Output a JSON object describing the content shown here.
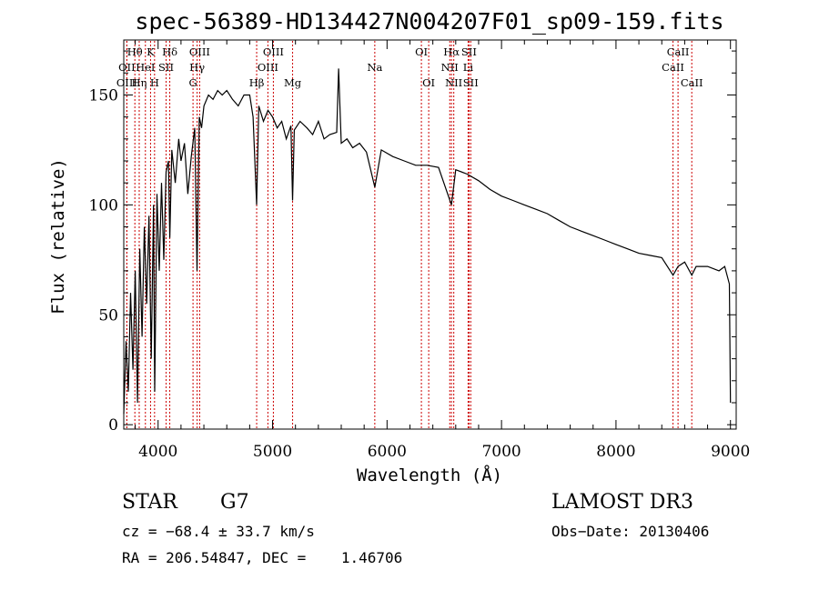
{
  "chart_data": {
    "type": "line",
    "title": "spec-56389-HD134427N004207F01_sp09-159.fits",
    "xlabel": "Wavelength (Å)",
    "ylabel": "Flux (relative)",
    "xlim": [
      3700,
      9050
    ],
    "ylim": [
      -2,
      175
    ],
    "xticks": [
      4000,
      5000,
      6000,
      7000,
      8000,
      9000
    ],
    "yticks": [
      0,
      50,
      100,
      150
    ],
    "series": [
      {
        "name": "flux",
        "x": [
          3700,
          3720,
          3740,
          3760,
          3780,
          3800,
          3820,
          3840,
          3860,
          3880,
          3900,
          3920,
          3940,
          3960,
          3970,
          3990,
          4010,
          4030,
          4050,
          4070,
          4090,
          4102,
          4120,
          4150,
          4180,
          4200,
          4230,
          4260,
          4290,
          4320,
          4340,
          4360,
          4380,
          4400,
          4440,
          4480,
          4520,
          4560,
          4600,
          4650,
          4700,
          4750,
          4800,
          4830,
          4861,
          4880,
          4920,
          4960,
          5000,
          5040,
          5080,
          5120,
          5160,
          5175,
          5190,
          5240,
          5300,
          5350,
          5400,
          5450,
          5500,
          5560,
          5577,
          5600,
          5650,
          5700,
          5760,
          5820,
          5893,
          5950,
          6050,
          6150,
          6250,
          6350,
          6450,
          6563,
          6600,
          6700,
          6800,
          6900,
          7000,
          7100,
          7200,
          7300,
          7400,
          7500,
          7600,
          7700,
          7800,
          7900,
          8000,
          8100,
          8200,
          8300,
          8400,
          8498,
          8542,
          8600,
          8662,
          8700,
          8800,
          8900,
          8950,
          8990,
          9000
        ],
        "y": [
          5,
          38,
          15,
          60,
          25,
          70,
          10,
          80,
          40,
          90,
          55,
          95,
          30,
          100,
          15,
          105,
          70,
          110,
          75,
          115,
          120,
          85,
          125,
          110,
          130,
          120,
          128,
          105,
          122,
          135,
          70,
          140,
          135,
          145,
          150,
          148,
          152,
          150,
          152,
          148,
          145,
          150,
          150,
          140,
          100,
          145,
          138,
          143,
          140,
          135,
          138,
          130,
          136,
          102,
          134,
          138,
          135,
          132,
          138,
          130,
          132,
          133,
          162,
          128,
          130,
          126,
          128,
          124,
          108,
          125,
          122,
          120,
          118,
          118,
          117,
          100,
          116,
          114,
          111,
          107,
          104,
          102,
          100,
          98,
          96,
          93,
          90,
          88,
          86,
          84,
          82,
          80,
          78,
          77,
          76,
          68,
          72,
          74,
          68,
          72,
          72,
          70,
          72,
          64,
          10
        ]
      }
    ],
    "line_markers": [
      {
        "label": "Hθ",
        "x": 3797,
        "row": 1
      },
      {
        "label": "OII",
        "x": 3727,
        "row": 2
      },
      {
        "label": "OIII",
        "x": 3727,
        "row": 3
      },
      {
        "label": "K",
        "x": 3934,
        "row": 1
      },
      {
        "label": "HeI",
        "x": 3889,
        "row": 2
      },
      {
        "label": "Hη",
        "x": 3835,
        "row": 3
      },
      {
        "label": "H",
        "x": 3969,
        "row": 3
      },
      {
        "label": "SII",
        "x": 4070,
        "row": 2
      },
      {
        "label": "Hδ",
        "x": 4102,
        "row": 1
      },
      {
        "label": "OIII",
        "x": 4363,
        "row": 1
      },
      {
        "label": "Hγ",
        "x": 4341,
        "row": 2
      },
      {
        "label": "G",
        "x": 4305,
        "row": 3
      },
      {
        "label": "Hβ",
        "x": 4861,
        "row": 3
      },
      {
        "label": "OIII",
        "x": 5007,
        "row": 1
      },
      {
        "label": "OIII",
        "x": 4959,
        "row": 2
      },
      {
        "label": "Mg",
        "x": 5175,
        "row": 3
      },
      {
        "label": "Na",
        "x": 5893,
        "row": 2
      },
      {
        "label": "OI",
        "x": 6300,
        "row": 1
      },
      {
        "label": "OI",
        "x": 6364,
        "row": 3
      },
      {
        "label": "Hα",
        "x": 6563,
        "row": 1
      },
      {
        "label": "NII",
        "x": 6548,
        "row": 2
      },
      {
        "label": "NII",
        "x": 6583,
        "row": 3
      },
      {
        "label": "SII",
        "x": 6716,
        "row": 1
      },
      {
        "label": "Li",
        "x": 6708,
        "row": 2
      },
      {
        "label": "SII",
        "x": 6731,
        "row": 3
      },
      {
        "label": "CaII",
        "x": 8542,
        "row": 1
      },
      {
        "label": "CaII",
        "x": 8498,
        "row": 2
      },
      {
        "label": "CaII",
        "x": 8662,
        "row": 3
      }
    ]
  },
  "footer": {
    "object_class": "STAR",
    "subclass": "G7",
    "survey": "LAMOST DR3",
    "cz": "cz = −68.4 ± 33.7 km/s",
    "obs_date": "Obs−Date: 20130406",
    "coords": "RA = 206.54847, DEC =    1.46706"
  },
  "colors": {
    "spectrum": "#000000",
    "marker_line": "#cc0000",
    "axis": "#000000",
    "background": "#ffffff"
  }
}
